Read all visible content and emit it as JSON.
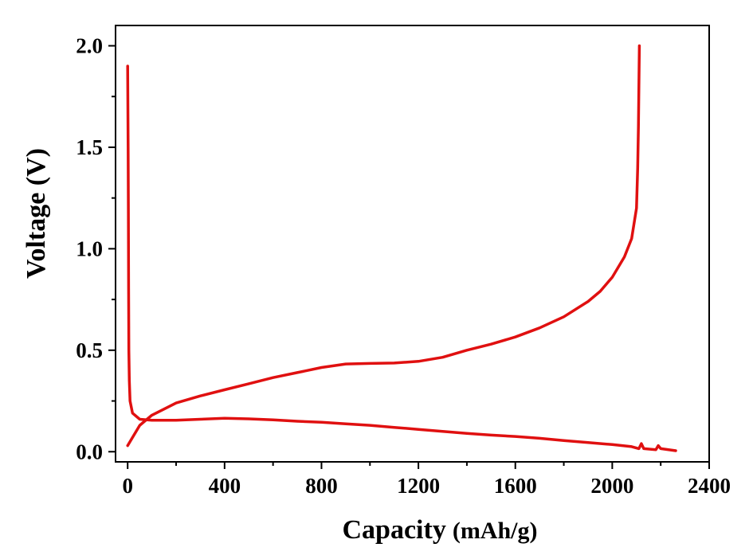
{
  "chart_data": {
    "type": "line",
    "title": "",
    "xlabel": "Capacity",
    "xlabel_unit": "(mAh/g)",
    "ylabel": "Voltage (V)",
    "xlim": [
      -50,
      2400
    ],
    "ylim": [
      -0.05,
      2.1
    ],
    "x_ticks": [
      0,
      400,
      800,
      1200,
      1600,
      2000,
      2400
    ],
    "x_tick_labels": [
      "0",
      "400",
      "800",
      "1200",
      "1600",
      "2000",
      "2400"
    ],
    "y_ticks": [
      0.0,
      0.5,
      1.0,
      1.5,
      2.0
    ],
    "y_tick_labels": [
      "0.0",
      "0.5",
      "1.0",
      "1.5",
      "2.0"
    ],
    "grid": false,
    "legend": "none",
    "colors": {
      "line": "#e01010",
      "axes": "#000000"
    },
    "series": [
      {
        "values_xy": [
          [
            0,
            1.9
          ],
          [
            2,
            1.5
          ],
          [
            3,
            1.2
          ],
          [
            4,
            0.8
          ],
          [
            5,
            0.5
          ],
          [
            7,
            0.35
          ],
          [
            10,
            0.25
          ],
          [
            20,
            0.19
          ],
          [
            50,
            0.16
          ],
          [
            100,
            0.155
          ],
          [
            200,
            0.155
          ],
          [
            300,
            0.16
          ],
          [
            400,
            0.165
          ],
          [
            500,
            0.162
          ],
          [
            600,
            0.157
          ],
          [
            700,
            0.15
          ],
          [
            800,
            0.145
          ],
          [
            900,
            0.137
          ],
          [
            1000,
            0.13
          ],
          [
            1100,
            0.12
          ],
          [
            1200,
            0.11
          ],
          [
            1300,
            0.1
          ],
          [
            1400,
            0.09
          ],
          [
            1500,
            0.082
          ],
          [
            1600,
            0.075
          ],
          [
            1700,
            0.066
          ],
          [
            1800,
            0.055
          ],
          [
            1900,
            0.045
          ],
          [
            2000,
            0.035
          ],
          [
            2080,
            0.025
          ],
          [
            2110,
            0.015
          ],
          [
            2120,
            0.04
          ],
          [
            2130,
            0.015
          ],
          [
            2180,
            0.01
          ],
          [
            2190,
            0.03
          ],
          [
            2200,
            0.015
          ],
          [
            2262,
            0.005
          ]
        ]
      },
      {
        "values_xy": [
          [
            0,
            0.03
          ],
          [
            20,
            0.07
          ],
          [
            50,
            0.13
          ],
          [
            100,
            0.18
          ],
          [
            200,
            0.24
          ],
          [
            300,
            0.275
          ],
          [
            400,
            0.305
          ],
          [
            500,
            0.335
          ],
          [
            600,
            0.365
          ],
          [
            700,
            0.39
          ],
          [
            800,
            0.415
          ],
          [
            900,
            0.432
          ],
          [
            1000,
            0.435
          ],
          [
            1100,
            0.437
          ],
          [
            1200,
            0.445
          ],
          [
            1300,
            0.465
          ],
          [
            1400,
            0.5
          ],
          [
            1500,
            0.53
          ],
          [
            1600,
            0.565
          ],
          [
            1700,
            0.61
          ],
          [
            1800,
            0.665
          ],
          [
            1900,
            0.74
          ],
          [
            1950,
            0.79
          ],
          [
            2000,
            0.86
          ],
          [
            2050,
            0.96
          ],
          [
            2080,
            1.05
          ],
          [
            2100,
            1.2
          ],
          [
            2105,
            1.4
          ],
          [
            2108,
            1.6
          ],
          [
            2110,
            1.8
          ],
          [
            2112,
            2.0
          ]
        ]
      }
    ]
  }
}
